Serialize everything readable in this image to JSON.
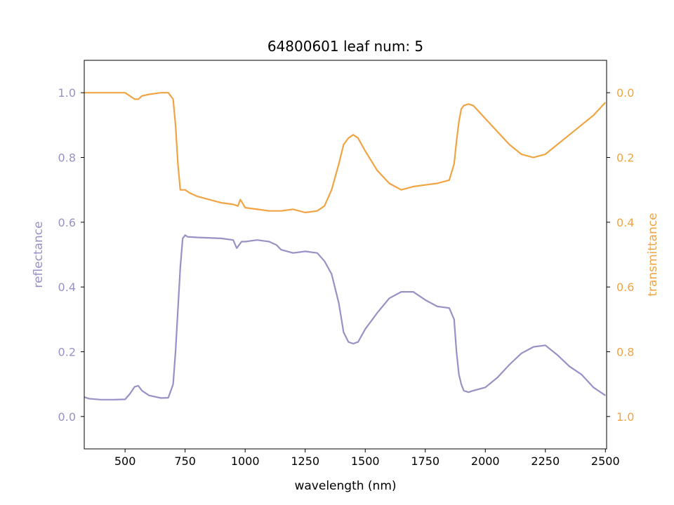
{
  "chart_data": {
    "type": "line",
    "title": "64800601 leaf num: 5",
    "xlabel": "wavelength (nm)",
    "ylabel_left": "reflectance",
    "ylabel_right": "transmittance",
    "xlim": [
      330,
      2505
    ],
    "ylim_left": [
      -0.1,
      1.1
    ],
    "ylim_right_inverted": [
      1.1,
      -0.1
    ],
    "x_ticks": [
      500,
      750,
      1000,
      1250,
      1500,
      1750,
      2000,
      2250,
      2500
    ],
    "y_ticks_left": [
      0.0,
      0.2,
      0.4,
      0.6,
      0.8,
      1.0
    ],
    "y_ticks_right": [
      0.0,
      0.2,
      0.4,
      0.6,
      0.8,
      1.0
    ],
    "colors": {
      "reflectance": "#9991c5",
      "transmittance": "#f0a444"
    },
    "grid": false,
    "series": [
      {
        "name": "reflectance",
        "axis": "left",
        "x": [
          330,
          350,
          400,
          450,
          500,
          520,
          540,
          555,
          570,
          600,
          650,
          680,
          700,
          710,
          720,
          730,
          740,
          750,
          760,
          800,
          900,
          950,
          965,
          975,
          985,
          1000,
          1050,
          1100,
          1130,
          1150,
          1200,
          1250,
          1300,
          1330,
          1360,
          1390,
          1410,
          1430,
          1450,
          1470,
          1500,
          1550,
          1600,
          1650,
          1700,
          1750,
          1800,
          1850,
          1870,
          1880,
          1890,
          1900,
          1910,
          1930,
          1950,
          2000,
          2050,
          2100,
          2150,
          2200,
          2250,
          2300,
          2350,
          2400,
          2450,
          2500
        ],
        "y": [
          0.06,
          0.055,
          0.052,
          0.052,
          0.053,
          0.07,
          0.092,
          0.095,
          0.08,
          0.065,
          0.057,
          0.058,
          0.1,
          0.2,
          0.33,
          0.46,
          0.55,
          0.56,
          0.555,
          0.553,
          0.55,
          0.545,
          0.52,
          0.53,
          0.54,
          0.54,
          0.545,
          0.54,
          0.53,
          0.515,
          0.505,
          0.51,
          0.505,
          0.48,
          0.44,
          0.35,
          0.26,
          0.23,
          0.225,
          0.23,
          0.27,
          0.32,
          0.365,
          0.385,
          0.385,
          0.36,
          0.34,
          0.335,
          0.3,
          0.2,
          0.13,
          0.1,
          0.08,
          0.075,
          0.08,
          0.09,
          0.12,
          0.16,
          0.195,
          0.215,
          0.22,
          0.19,
          0.155,
          0.13,
          0.09,
          0.065
        ]
      },
      {
        "name": "transmittance",
        "axis": "right",
        "x": [
          330,
          350,
          400,
          450,
          500,
          520,
          540,
          555,
          570,
          600,
          650,
          680,
          700,
          710,
          720,
          730,
          740,
          750,
          770,
          800,
          900,
          950,
          970,
          980,
          1000,
          1050,
          1100,
          1150,
          1200,
          1250,
          1300,
          1330,
          1360,
          1390,
          1410,
          1430,
          1450,
          1470,
          1500,
          1550,
          1600,
          1650,
          1700,
          1750,
          1800,
          1850,
          1870,
          1880,
          1890,
          1900,
          1910,
          1930,
          1950,
          2000,
          2050,
          2100,
          2150,
          2200,
          2250,
          2300,
          2350,
          2400,
          2450,
          2500
        ],
        "y": [
          0.0,
          0.0,
          0.0,
          0.0,
          0.0,
          0.01,
          0.02,
          0.02,
          0.01,
          0.005,
          0.0,
          0.0,
          0.02,
          0.1,
          0.22,
          0.3,
          0.3,
          0.3,
          0.31,
          0.32,
          0.34,
          0.345,
          0.35,
          0.33,
          0.355,
          0.36,
          0.365,
          0.365,
          0.36,
          0.37,
          0.365,
          0.35,
          0.3,
          0.22,
          0.16,
          0.14,
          0.13,
          0.14,
          0.18,
          0.24,
          0.28,
          0.3,
          0.29,
          0.285,
          0.28,
          0.27,
          0.22,
          0.15,
          0.09,
          0.05,
          0.04,
          0.035,
          0.04,
          0.08,
          0.12,
          0.16,
          0.19,
          0.2,
          0.19,
          0.16,
          0.13,
          0.1,
          0.07,
          0.03
        ]
      }
    ]
  }
}
